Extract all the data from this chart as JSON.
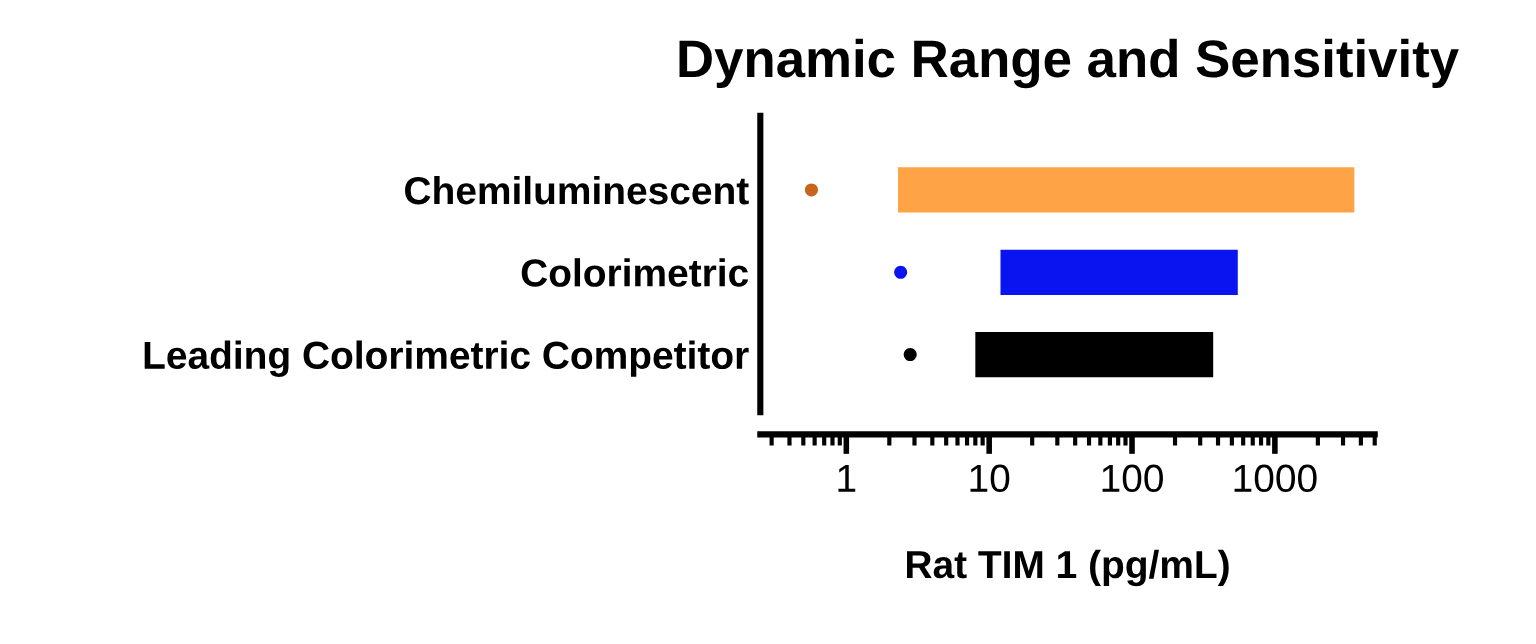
{
  "chart_data": {
    "type": "bar",
    "orientation": "horizontal",
    "title": "Dynamic Range and Sensitivity",
    "xlabel": "Rat TIM 1 (pg/mL)",
    "log": "x",
    "categories": [
      "Chemiluminescent",
      "Colorimetric",
      "Leading Colorimetric Competitor"
    ],
    "series": [
      {
        "colors": [
          "#ffa347",
          "#0a14f0",
          "#000000"
        ],
        "base": [
          2.3,
          12,
          8
        ],
        "values": [
          3598,
          538,
          362
        ]
      },
      {
        "type": "scatter",
        "colors": [
          "#c8641e",
          "#0a14f0",
          "#000000"
        ],
        "values": [
          0.57,
          2.4,
          2.8
        ]
      }
    ],
    "xlim": [
      0.25,
      5000
    ],
    "xticks": [
      1,
      10,
      100,
      1000
    ]
  }
}
